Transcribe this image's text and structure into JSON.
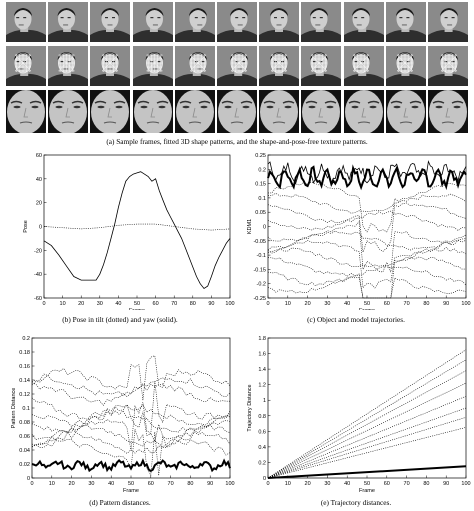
{
  "figure": {
    "panel_a_caption": "(a) Sample frames, fitted 3D shape patterns, and the shape-and-pose-free texture patterns.",
    "panel_b_caption": "(b) Pose in tilt (dotted) and yaw (solid).",
    "panel_c_caption": "(c) Object and model trajectories.",
    "panel_d_caption": "(d) Pattern distances.",
    "panel_e_caption": "(e) Trajectory distances."
  },
  "frames": {
    "columns": 11,
    "rows": 3
  },
  "chart_data": [
    {
      "id": "b",
      "type": "line",
      "xlabel": "Frame",
      "ylabel": "Pose",
      "xlim": [
        0,
        100
      ],
      "ylim": [
        -60,
        60
      ],
      "xticks": [
        0,
        10,
        20,
        30,
        40,
        50,
        60,
        70,
        80,
        90,
        100
      ],
      "yticks": [
        -60,
        -40,
        -20,
        0,
        20,
        40,
        60
      ],
      "series": [
        {
          "style": "solid",
          "x": [
            0,
            4,
            8,
            12,
            16,
            20,
            24,
            28,
            30,
            32,
            34,
            36,
            38,
            40,
            42,
            44,
            46,
            48,
            50,
            52,
            54,
            56,
            58,
            60,
            62,
            64,
            66,
            68,
            70,
            72,
            74,
            76,
            78,
            80,
            82,
            84,
            86,
            88,
            90,
            92,
            94,
            96,
            98,
            100
          ],
          "y": [
            -12,
            -16,
            -24,
            -33,
            -42,
            -45,
            -45,
            -45,
            -40,
            -32,
            -22,
            -10,
            2,
            16,
            28,
            38,
            42,
            44,
            45,
            46,
            44,
            42,
            38,
            40,
            30,
            22,
            14,
            8,
            2,
            -4,
            -10,
            -18,
            -26,
            -34,
            -42,
            -48,
            -52,
            -50,
            -42,
            -33,
            -26,
            -20,
            -14,
            -10
          ]
        },
        {
          "style": "dotted",
          "x": [
            0,
            10,
            20,
            30,
            40,
            50,
            60,
            70,
            80,
            90,
            100
          ],
          "y": [
            0,
            -1,
            -2,
            -1,
            1,
            2,
            2,
            0,
            -2,
            -3,
            -2
          ]
        }
      ]
    },
    {
      "id": "c",
      "type": "line",
      "xlabel": "Frame",
      "ylabel": "KDM1",
      "xlim": [
        0,
        100
      ],
      "ylim": [
        -0.25,
        0.25
      ],
      "xticks": [
        0,
        10,
        20,
        30,
        40,
        50,
        60,
        70,
        80,
        90,
        100
      ],
      "yticks": [
        -0.25,
        -0.2,
        -0.15,
        -0.1,
        -0.05,
        0,
        0.05,
        0.1,
        0.15,
        0.2,
        0.25
      ]
    },
    {
      "id": "d",
      "type": "line",
      "xlabel": "Frame",
      "ylabel": "Pattern Distance",
      "xlim": [
        0,
        100
      ],
      "ylim": [
        0,
        0.2
      ],
      "xticks": [
        0,
        10,
        20,
        30,
        40,
        50,
        60,
        70,
        80,
        90,
        100
      ],
      "yticks": [
        0,
        0.02,
        0.04,
        0.06,
        0.08,
        0.1,
        0.12,
        0.14,
        0.16,
        0.18,
        0.2
      ]
    },
    {
      "id": "e",
      "type": "line",
      "xlabel": "Frame",
      "ylabel": "Trajectory Distance",
      "xlim": [
        0,
        100
      ],
      "ylim": [
        0,
        1.8
      ],
      "xticks": [
        0,
        10,
        20,
        30,
        40,
        50,
        60,
        70,
        80,
        90,
        100
      ],
      "yticks": [
        0,
        0.2,
        0.4,
        0.6,
        0.8,
        1,
        1.2,
        1.4,
        1.6,
        1.8
      ],
      "series": [
        {
          "style": "thick-solid",
          "x": [
            0,
            100
          ],
          "y": [
            0,
            0.15
          ]
        },
        {
          "style": "dotted",
          "x": [
            0,
            100
          ],
          "y": [
            0,
            1.65
          ]
        },
        {
          "style": "dotted",
          "x": [
            0,
            100
          ],
          "y": [
            0,
            1.52
          ]
        },
        {
          "style": "dotted",
          "x": [
            0,
            100
          ],
          "y": [
            0,
            1.38
          ]
        },
        {
          "style": "dotted",
          "x": [
            0,
            100
          ],
          "y": [
            0,
            1.22
          ]
        },
        {
          "style": "dotted",
          "x": [
            0,
            100
          ],
          "y": [
            0,
            1.05
          ]
        },
        {
          "style": "dotted",
          "x": [
            0,
            100
          ],
          "y": [
            0,
            0.9
          ]
        },
        {
          "style": "dotted",
          "x": [
            0,
            100
          ],
          "y": [
            0,
            0.78
          ]
        },
        {
          "style": "dotted",
          "x": [
            0,
            100
          ],
          "y": [
            0,
            0.65
          ]
        }
      ]
    }
  ]
}
